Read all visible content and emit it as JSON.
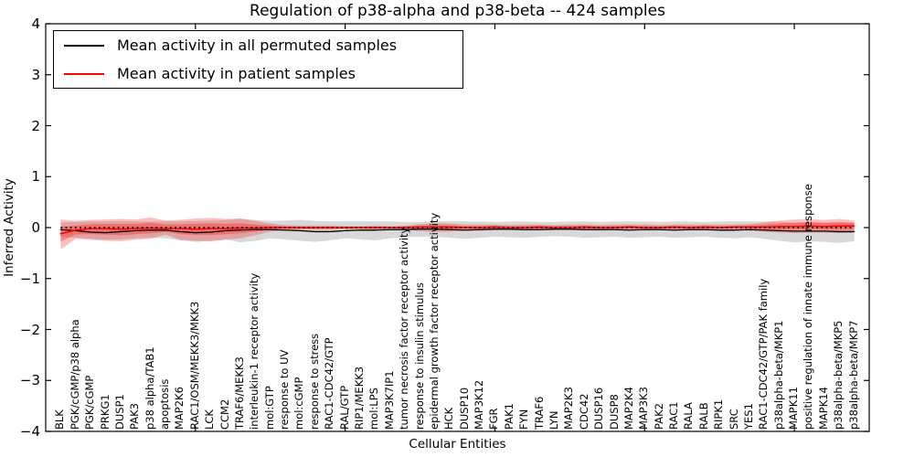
{
  "figure": {
    "title": "Regulation of p38-alpha and p38-beta -- 424 samples",
    "x_axis_label": "Cellular Entities",
    "y_axis_label": "Inferred Activity"
  },
  "legend": {
    "entries": [
      {
        "label": "Mean activity in all permuted samples",
        "color": "#000000"
      },
      {
        "label": "Mean activity in patient samples",
        "color": "#ff0000"
      }
    ]
  },
  "chart_data": {
    "type": "line",
    "title": "Regulation of p38-alpha and p38-beta -- 424 samples",
    "xlabel": "Cellular Entities",
    "ylabel": "Inferred Activity",
    "ylim": [
      -4,
      4
    ],
    "xlim": [
      0,
      55
    ],
    "y_ticks": [
      4,
      3,
      2,
      1,
      0,
      -1,
      -2,
      -3,
      -4
    ],
    "x_frame_ticks": [
      10,
      20,
      30,
      40,
      50
    ],
    "grid": false,
    "legend_position": "upper left",
    "zero_reference_line": {
      "y": 0,
      "style": "dotted",
      "color": "#000000"
    },
    "entities": [
      "BLK",
      "PGK/cGMP/p38 alpha",
      "PGK/cGMP",
      "PRKG1",
      "DUSP1",
      "PAK3",
      "p38 alpha/TAB1",
      "apoptosis",
      "MAP2K6",
      "RAC1/OSM/MEKK3/MKK3",
      "LCK",
      "CCM2",
      "TRAF6/MEKK3",
      "interleukin-1 receptor activity",
      "mol:GTP",
      "response to UV",
      "mol:cGMP",
      "response to stress",
      "RAC1-CDC42/GTP",
      "RAL/GTP",
      "RIP1/MEKK3",
      "mol:LPS",
      "MAP3K7IP1",
      "tumor necrosis factor receptor activity",
      "response to insulin stimulus",
      "epidermal growth factor receptor activity",
      "HCK",
      "DUSP10",
      "MAP3K12",
      "FGR",
      "PAK1",
      "FYN",
      "TRAF6",
      "LYN",
      "MAP2K3",
      "CDC42",
      "DUSP16",
      "DUSP8",
      "MAP2K4",
      "MAP3K3",
      "PAK2",
      "RAC1",
      "RALA",
      "RALB",
      "RIPK1",
      "SRC",
      "YES1",
      "RAC1-CDC42/GTP/PAK family",
      "p38alpha-beta/MKP1",
      "MAPK11",
      "positive regulation of innate immune response",
      "MAPK14",
      "p38alpha-beta/MKP5",
      "p38alpha-beta/MKP7"
    ],
    "series": [
      {
        "name": "Mean activity in all permuted samples",
        "line_color": "#000000",
        "band_color": "rgba(100,100,100,0.25)",
        "mean": [
          -0.04,
          -0.06,
          -0.09,
          -0.1,
          -0.08,
          -0.06,
          -0.05,
          -0.05,
          -0.08,
          -0.1,
          -0.09,
          -0.06,
          -0.05,
          -0.04,
          -0.04,
          -0.05,
          -0.06,
          -0.08,
          -0.08,
          -0.06,
          -0.05,
          -0.05,
          -0.04,
          -0.04,
          -0.03,
          -0.03,
          -0.04,
          -0.05,
          -0.04,
          -0.03,
          -0.03,
          -0.04,
          -0.04,
          -0.03,
          -0.03,
          -0.04,
          -0.04,
          -0.04,
          -0.05,
          -0.04,
          -0.04,
          -0.05,
          -0.04,
          -0.04,
          -0.05,
          -0.05,
          -0.04,
          -0.05,
          -0.06,
          -0.07,
          -0.07,
          -0.07,
          -0.08,
          -0.08
        ],
        "band_upper": [
          0.1,
          0.11,
          0.12,
          0.12,
          0.13,
          0.12,
          0.12,
          0.12,
          0.12,
          0.13,
          0.14,
          0.15,
          0.17,
          0.15,
          0.13,
          0.14,
          0.15,
          0.13,
          0.12,
          0.12,
          0.12,
          0.12,
          0.12,
          0.11,
          0.11,
          0.12,
          0.13,
          0.12,
          0.12,
          0.11,
          0.12,
          0.12,
          0.11,
          0.11,
          0.12,
          0.12,
          0.11,
          0.12,
          0.12,
          0.12,
          0.11,
          0.12,
          0.12,
          0.11,
          0.12,
          0.12,
          0.12,
          0.12,
          0.11,
          0.1,
          0.11,
          0.1,
          0.11,
          0.1
        ],
        "band_lower": [
          -0.18,
          -0.2,
          -0.22,
          -0.24,
          -0.23,
          -0.21,
          -0.2,
          -0.21,
          -0.25,
          -0.28,
          -0.26,
          -0.23,
          -0.29,
          -0.26,
          -0.21,
          -0.23,
          -0.26,
          -0.28,
          -0.25,
          -0.21,
          -0.23,
          -0.25,
          -0.21,
          -0.19,
          -0.18,
          -0.18,
          -0.2,
          -0.22,
          -0.2,
          -0.18,
          -0.19,
          -0.2,
          -0.18,
          -0.17,
          -0.18,
          -0.2,
          -0.19,
          -0.18,
          -0.2,
          -0.19,
          -0.18,
          -0.2,
          -0.19,
          -0.18,
          -0.2,
          -0.21,
          -0.19,
          -0.22,
          -0.26,
          -0.29,
          -0.27,
          -0.28,
          -0.3,
          -0.27
        ]
      },
      {
        "name": "Mean activity in patient samples",
        "line_color": "#ff0000",
        "band_color": "rgba(255,0,0,0.25)",
        "inner_band_color": "rgba(255,0,0,0.30)",
        "mean": [
          -0.12,
          -0.05,
          -0.02,
          -0.02,
          -0.03,
          -0.02,
          -0.01,
          -0.02,
          -0.02,
          -0.03,
          -0.02,
          -0.02,
          -0.01,
          -0.01,
          0.0,
          0.0,
          0.0,
          0.0,
          0.0,
          0.0,
          0.0,
          0.0,
          0.0,
          0.0,
          0.01,
          0.01,
          0.01,
          0.0,
          0.0,
          0.01,
          0.0,
          0.0,
          0.01,
          0.0,
          0.0,
          0.01,
          0.0,
          0.0,
          0.01,
          0.0,
          0.0,
          0.01,
          0.0,
          0.01,
          0.0,
          0.01,
          0.01,
          0.01,
          0.02,
          0.02,
          0.03,
          0.02,
          0.03,
          0.03
        ],
        "band_upper": [
          0.16,
          0.13,
          0.15,
          0.16,
          0.17,
          0.16,
          0.2,
          0.14,
          0.15,
          0.18,
          0.19,
          0.17,
          0.18,
          0.13,
          0.08,
          0.05,
          0.04,
          0.04,
          0.04,
          0.03,
          0.03,
          0.04,
          0.03,
          0.04,
          0.07,
          0.09,
          0.08,
          0.06,
          0.06,
          0.06,
          0.05,
          0.06,
          0.06,
          0.05,
          0.06,
          0.06,
          0.05,
          0.06,
          0.06,
          0.06,
          0.05,
          0.06,
          0.06,
          0.06,
          0.06,
          0.06,
          0.07,
          0.1,
          0.14,
          0.16,
          0.17,
          0.15,
          0.17,
          0.14
        ],
        "band_lower": [
          -0.43,
          -0.22,
          -0.24,
          -0.26,
          -0.27,
          -0.24,
          -0.22,
          -0.14,
          -0.24,
          -0.26,
          -0.27,
          -0.24,
          -0.21,
          -0.15,
          -0.08,
          -0.05,
          -0.04,
          -0.04,
          -0.04,
          -0.03,
          -0.03,
          -0.04,
          -0.03,
          -0.04,
          -0.07,
          -0.09,
          -0.08,
          -0.06,
          -0.06,
          -0.05,
          -0.05,
          -0.05,
          -0.05,
          -0.05,
          -0.05,
          -0.05,
          -0.05,
          -0.05,
          -0.05,
          -0.05,
          -0.05,
          -0.05,
          -0.05,
          -0.05,
          -0.05,
          -0.05,
          -0.06,
          -0.08,
          -0.1,
          -0.11,
          -0.1,
          -0.1,
          -0.11,
          -0.1
        ]
      }
    ]
  }
}
